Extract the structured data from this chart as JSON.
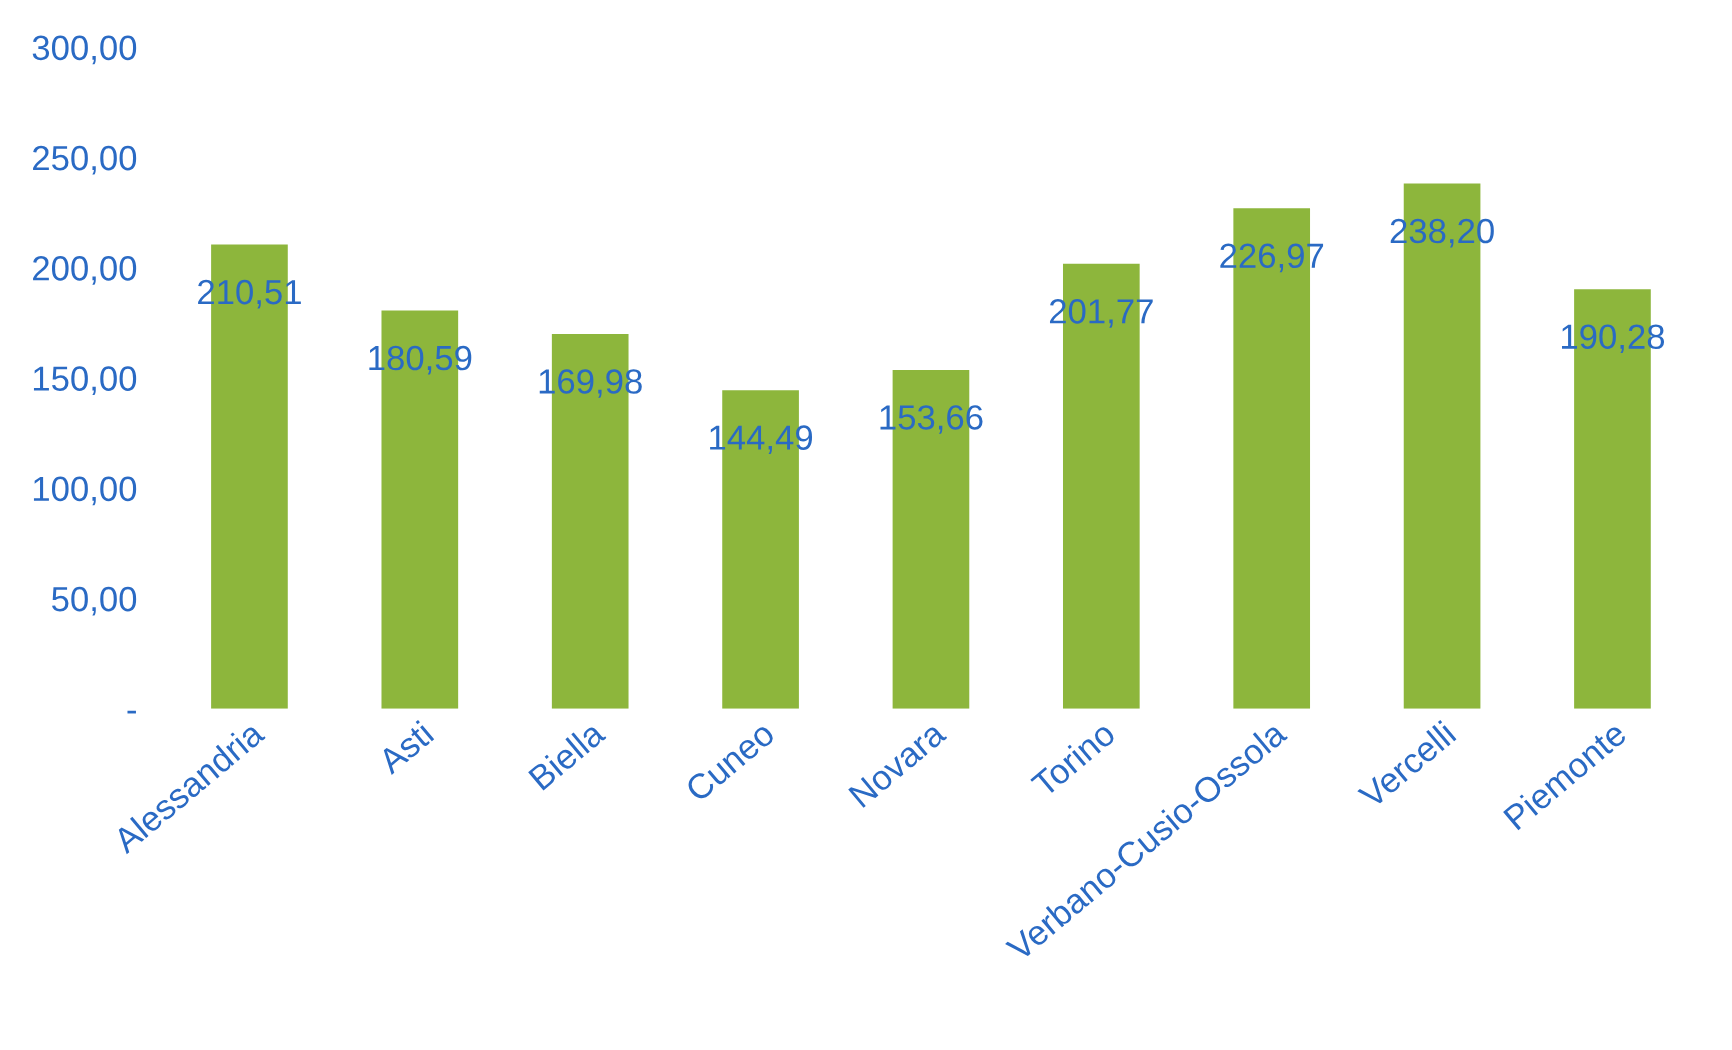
{
  "chart_data": {
    "type": "bar",
    "categories": [
      "Alessandria",
      "Asti",
      "Biella",
      "Cuneo",
      "Novara",
      "Torino",
      "Verbano-Cusio-Ossola",
      "Vercelli",
      "Piemonte"
    ],
    "values": [
      210.51,
      180.59,
      169.98,
      144.49,
      153.66,
      201.77,
      226.97,
      238.2,
      190.28
    ],
    "value_labels": [
      "210,51",
      "180,59",
      "169,98",
      "144,49",
      "153,66",
      "201,77",
      "226,97",
      "238,20",
      "190,28"
    ],
    "color": "#8db63c",
    "ylim": [
      0,
      300
    ],
    "yticks": [
      {
        "value": 0,
        "label": "-"
      },
      {
        "value": 50,
        "label": "50,00"
      },
      {
        "value": 100,
        "label": "100,00"
      },
      {
        "value": 150,
        "label": "150,00"
      },
      {
        "value": 200,
        "label": "200,00"
      },
      {
        "value": 250,
        "label": "250,00"
      },
      {
        "value": 300,
        "label": "300,00"
      }
    ],
    "grid": false,
    "legend": false
  }
}
